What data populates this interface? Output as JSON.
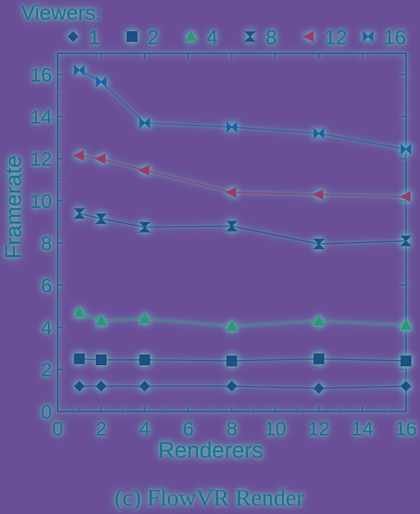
{
  "chart_data": {
    "type": "line",
    "legend_title": "Viewers:",
    "legend_placement": "top",
    "xlabel": "Renderers",
    "ylabel": "Framerate",
    "caption": "(c)  FlowVR Render",
    "xlim": [
      0,
      16
    ],
    "ylim": [
      0,
      17
    ],
    "xticks": [
      0,
      2,
      4,
      6,
      8,
      10,
      12,
      14,
      16
    ],
    "yticks": [
      0,
      2,
      4,
      6,
      8,
      10,
      12,
      14,
      16
    ],
    "x": [
      1,
      2,
      4,
      8,
      12,
      16
    ],
    "series": [
      {
        "name": "1",
        "marker": "diamond",
        "color": "#1e4f86",
        "values": [
          1.2,
          1.2,
          1.2,
          1.2,
          1.1,
          1.2
        ]
      },
      {
        "name": "2",
        "marker": "square",
        "color": "#1e4f86",
        "values": [
          2.5,
          2.45,
          2.45,
          2.4,
          2.5,
          2.4
        ]
      },
      {
        "name": "4",
        "marker": "triangle",
        "color": "#2a9a72",
        "values": [
          4.7,
          4.3,
          4.4,
          4.05,
          4.3,
          4.1
        ]
      },
      {
        "name": "8",
        "marker": "hourglass",
        "color": "#1e4f86",
        "values": [
          9.4,
          9.15,
          8.75,
          8.8,
          7.95,
          8.1
        ]
      },
      {
        "name": "12",
        "marker": "tri-left",
        "color": "#9a3a6a",
        "values": [
          12.15,
          12.0,
          11.45,
          10.4,
          10.3,
          10.2
        ]
      },
      {
        "name": "16",
        "marker": "bowtie",
        "color": "#1e5fa6",
        "values": [
          16.2,
          15.65,
          13.7,
          13.5,
          13.2,
          12.45
        ]
      }
    ]
  }
}
